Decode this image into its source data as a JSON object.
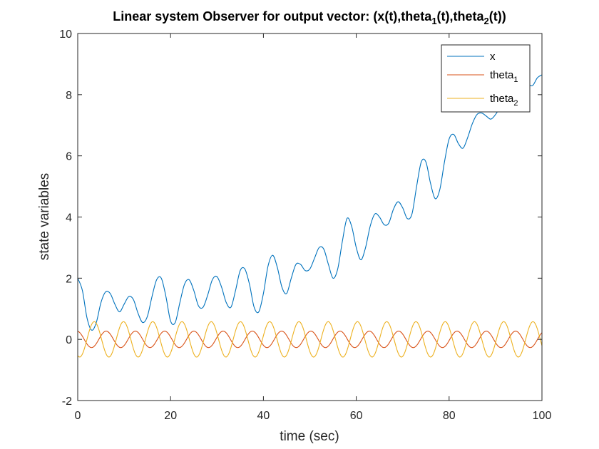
{
  "chart_data": {
    "type": "line",
    "title": "Linear system Observer for output vector: (x(t),theta_1(t),theta_2(t))",
    "title_parts": {
      "p1": "Linear system Observer for output vector: (x(t),theta",
      "sub1": "1",
      "p2": "(t),theta",
      "sub2": "2",
      "p3": "(t))"
    },
    "xlabel": "time (sec)",
    "ylabel": "state variables",
    "xlim": [
      0,
      100
    ],
    "ylim": [
      -2,
      10
    ],
    "xticks": [
      "0",
      "20",
      "40",
      "60",
      "80",
      "100"
    ],
    "yticks": [
      "-2",
      "0",
      "2",
      "4",
      "6",
      "8",
      "10"
    ],
    "grid": false,
    "legend_position": "top-right",
    "series": [
      {
        "name": "x",
        "legend": {
          "base": "x",
          "sub": ""
        },
        "color": "#0072BD",
        "x": [
          0,
          1,
          2,
          3,
          4,
          5,
          6,
          7,
          8,
          9,
          10,
          11,
          12,
          13,
          14,
          15,
          16,
          17,
          18,
          19,
          20,
          21,
          22,
          23,
          24,
          25,
          26,
          27,
          28,
          29,
          30,
          31,
          32,
          33,
          34,
          35,
          36,
          37,
          38,
          39,
          40,
          41,
          42,
          43,
          44,
          45,
          46,
          47,
          48,
          49,
          50,
          51,
          52,
          53,
          54,
          55,
          56,
          57,
          58,
          59,
          60,
          61,
          62,
          63,
          64,
          65,
          66,
          67,
          68,
          69,
          70,
          71,
          72,
          73,
          74,
          75,
          76,
          77,
          78,
          79,
          80,
          81,
          82,
          83,
          84,
          85,
          86,
          87,
          88,
          89,
          90,
          91,
          92,
          93,
          94,
          95,
          96,
          97,
          98,
          99,
          100
        ],
        "y": [
          2.0,
          1.6,
          0.7,
          0.3,
          0.55,
          1.2,
          1.55,
          1.5,
          1.15,
          0.9,
          1.15,
          1.4,
          1.3,
          0.85,
          0.55,
          0.75,
          1.4,
          1.95,
          2.0,
          1.4,
          0.6,
          0.55,
          1.2,
          1.8,
          1.95,
          1.6,
          1.1,
          1.05,
          1.45,
          1.95,
          2.05,
          1.7,
          1.2,
          1.05,
          1.6,
          2.25,
          2.3,
          1.8,
          1.05,
          0.9,
          1.5,
          2.4,
          2.75,
          2.35,
          1.7,
          1.5,
          2.0,
          2.45,
          2.45,
          2.25,
          2.3,
          2.65,
          3.0,
          2.95,
          2.45,
          2.0,
          2.3,
          3.2,
          3.95,
          3.7,
          3.0,
          2.6,
          3.0,
          3.7,
          4.1,
          4.0,
          3.75,
          3.8,
          4.25,
          4.5,
          4.3,
          3.95,
          4.1,
          5.0,
          5.8,
          5.8,
          5.1,
          4.6,
          4.9,
          5.8,
          6.55,
          6.7,
          6.4,
          6.25,
          6.6,
          7.05,
          7.35,
          7.4,
          7.3,
          7.2,
          7.35,
          7.6,
          8.0,
          8.3,
          8.55,
          8.75,
          8.6,
          8.35,
          8.3,
          8.55,
          8.65
        ]
      },
      {
        "name": "theta_1",
        "legend": {
          "base": "theta",
          "sub": "1"
        },
        "color": "#D95319",
        "amplitude": 0.27,
        "period": 6.3,
        "phase": 1.75,
        "samples": 401
      },
      {
        "name": "theta_2",
        "legend": {
          "base": "theta",
          "sub": "2"
        },
        "color": "#EDB120",
        "amplitude": 0.58,
        "period": 6.3,
        "phase": 4.3,
        "samples": 401
      }
    ]
  }
}
